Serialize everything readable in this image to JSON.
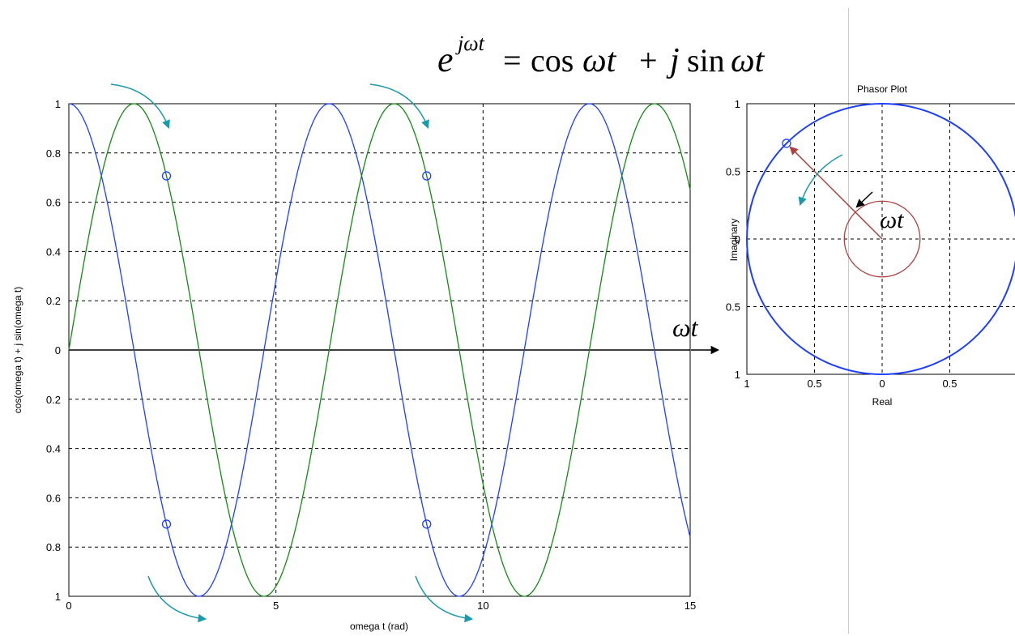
{
  "equation": {
    "base": "e",
    "exponent": "jωt",
    "rhs_cos": "cos",
    "rhs_wt": "ωt",
    "rhs_plus": "+",
    "rhs_j": "j",
    "rhs_sin": "sin",
    "rhs_wt2": "ωt",
    "equals": "="
  },
  "chart_data": [
    {
      "type": "line",
      "title": "",
      "xlabel": "omega t (rad)",
      "ylabel": "cos(omega t) + j sin(omega t)",
      "xlim": [
        0,
        15
      ],
      "ylim": [
        -1,
        1
      ],
      "grid": true,
      "xticks": [
        0,
        5,
        10,
        15
      ],
      "xtick_labels": [
        "0",
        "5",
        "10",
        "15"
      ],
      "yticks": [
        1,
        0.8,
        0.6,
        0.4,
        0.2,
        0,
        -0.2,
        -0.4,
        -0.6,
        -0.8,
        -1
      ],
      "ytick_labels": [
        "1",
        "0.8",
        "0.6",
        "0.4",
        "0.2",
        "0",
        "0.2",
        "0.4",
        "0.6",
        "0.8",
        "1"
      ],
      "series": [
        {
          "function": "cos",
          "color": "#1f3fff"
        },
        {
          "function": "sin",
          "color": "#158a15"
        }
      ],
      "markers": [
        {
          "x": 2.356,
          "y": 0.707
        },
        {
          "x": 2.356,
          "y": -0.707
        },
        {
          "x": 8.639,
          "y": 0.707
        },
        {
          "x": 8.639,
          "y": -0.707
        }
      ],
      "x_axis_annotation": "ωt"
    },
    {
      "type": "scatter",
      "title": "Phasor Plot",
      "xlabel": "Real",
      "ylabel": "Imaginary",
      "xlim": [
        -1,
        1
      ],
      "ylim": [
        -1,
        1
      ],
      "grid": true,
      "xticks": [
        -1,
        -0.5,
        0,
        0.5
      ],
      "xtick_labels": [
        "1",
        "0.5",
        "0",
        "0.5"
      ],
      "yticks": [
        1,
        0.5,
        0,
        -0.5,
        -1
      ],
      "ytick_labels": [
        "1",
        "0.5",
        "0",
        "0.5",
        "1"
      ],
      "unit_circle_color": "#1f3fff",
      "phasor": {
        "x": -0.707,
        "y": 0.707,
        "color": "#b04040"
      },
      "angle_circle_radius": 0.28,
      "angle_label": "ωt"
    }
  ],
  "colors": {
    "rotation_arrow": "#1a9aaa",
    "phasor_arrow": "#b04040",
    "grid": "#000000"
  }
}
